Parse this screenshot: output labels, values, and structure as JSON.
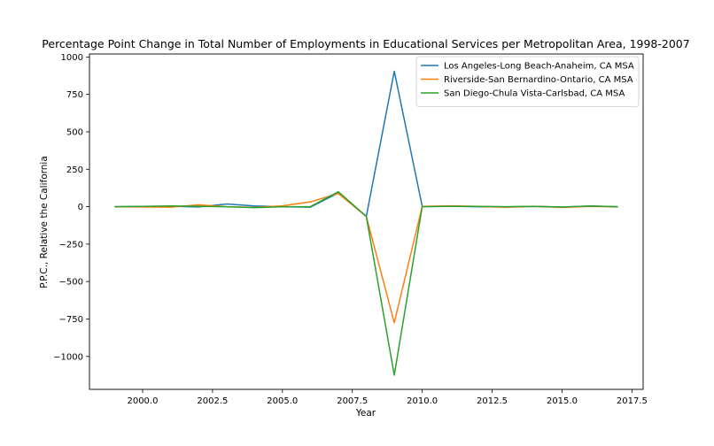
{
  "chart_data": {
    "type": "line",
    "title": "Percentage Point Change in Total Number of Employments in Educational Services per Metropolitan Area, 1998-2007",
    "xlabel": "Year",
    "ylabel": "P.P.C., Relative the California",
    "xlim": [
      1998.1,
      2017.9
    ],
    "ylim": [
      -1220,
      1020
    ],
    "x_ticks": [
      2000.0,
      2002.5,
      2005.0,
      2007.5,
      2010.0,
      2012.5,
      2015.0,
      2017.5
    ],
    "x_tick_labels": [
      "2000.0",
      "2002.5",
      "2005.0",
      "2007.5",
      "2010.0",
      "2012.5",
      "2015.0",
      "2017.5"
    ],
    "y_ticks": [
      -1000,
      -750,
      -500,
      -250,
      0,
      250,
      500,
      750,
      1000
    ],
    "y_tick_labels": [
      "−1000",
      "−750",
      "−500",
      "−250",
      "0",
      "250",
      "500",
      "750",
      "1000"
    ],
    "grid": false,
    "legend_position": "top-right",
    "x": [
      1999,
      2000,
      2001,
      2002,
      2003,
      2004,
      2005,
      2006,
      2007,
      2008,
      2009,
      2010,
      2011,
      2012,
      2013,
      2014,
      2015,
      2016,
      2017
    ],
    "series": [
      {
        "name": "Los Angeles-Long Beach-Anaheim, CA MSA",
        "color": "#1f77b4",
        "values": [
          0,
          2,
          3,
          -2,
          18,
          5,
          0,
          -3,
          92,
          -65,
          905,
          2,
          3,
          0,
          -1,
          2,
          -3,
          5,
          0
        ]
      },
      {
        "name": "Riverside-San Bernardino-Ontario, CA MSA",
        "color": "#ff7f0e",
        "values": [
          0,
          -2,
          -3,
          12,
          0,
          -5,
          6,
          32,
          88,
          -65,
          -775,
          2,
          6,
          2,
          -4,
          3,
          -5,
          2,
          -1
        ]
      },
      {
        "name": "San Diego-Chula Vista-Carlsbad, CA MSA",
        "color": "#2ca02c",
        "values": [
          0,
          2,
          5,
          3,
          0,
          -6,
          0,
          0,
          100,
          -65,
          -1125,
          0,
          3,
          2,
          0,
          2,
          -2,
          4,
          0
        ]
      }
    ]
  }
}
